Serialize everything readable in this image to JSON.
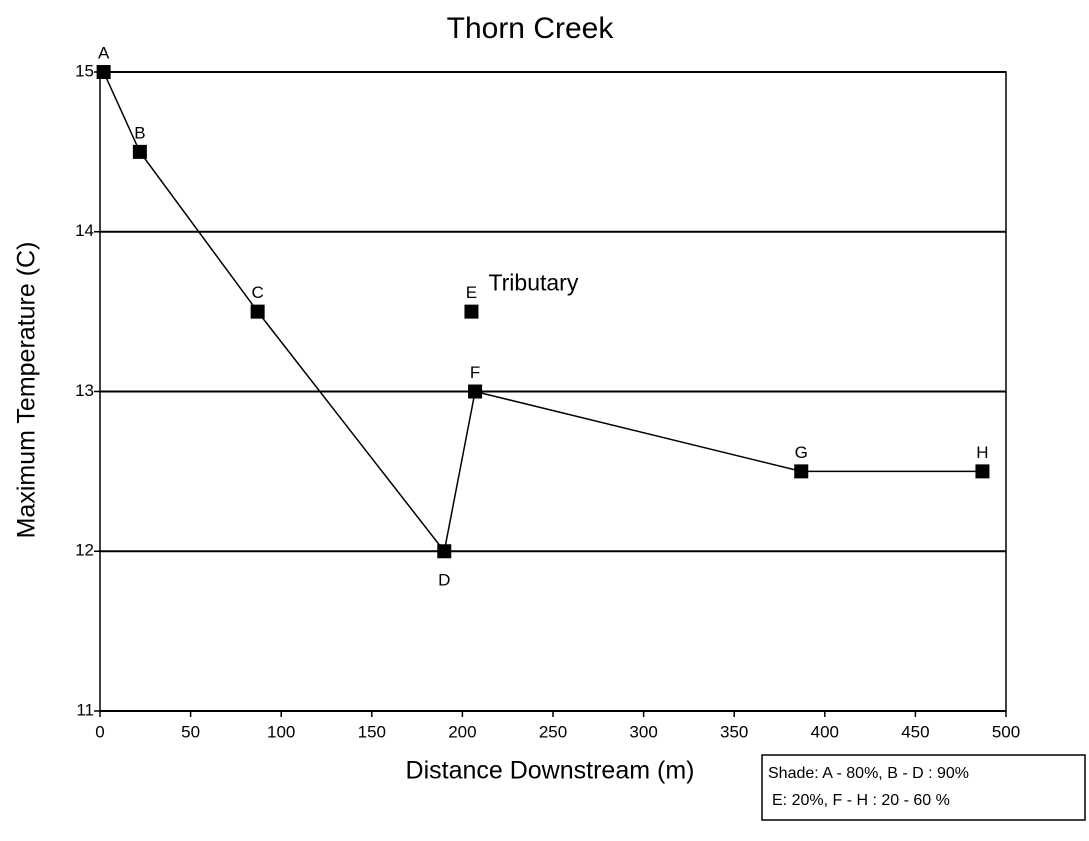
{
  "chart_data": {
    "type": "line",
    "title": "Thorn Creek",
    "x_label": "Distance Downstream (m)",
    "y_label": "Maximum Temperature (C)",
    "series": [
      {
        "x": [
          2,
          22,
          87,
          190,
          207,
          387,
          487
        ],
        "values": [
          15,
          14.5,
          13.5,
          12,
          13,
          12.5,
          12.5
        ],
        "point_labels": [
          "A",
          "B",
          "C",
          "D",
          "F",
          "G",
          "H"
        ],
        "color": "#000000",
        "line": true
      },
      {
        "x": [
          205
        ],
        "values": [
          13.5
        ],
        "point_labels": [
          "E"
        ],
        "color": "#000000",
        "line": false
      }
    ],
    "annotation": "Tributary",
    "note": [
      "Shade: A - 80%, B - D : 90%",
      "E: 20%, F - H : 20 - 60 %"
    ],
    "xlim": [
      0,
      500
    ],
    "xticks": [
      0,
      50,
      100,
      150,
      200,
      250,
      300,
      350,
      400,
      450,
      500
    ],
    "ylim": [
      11,
      15
    ],
    "yticks": [
      11,
      12,
      13,
      14,
      15
    ],
    "grid": true
  }
}
